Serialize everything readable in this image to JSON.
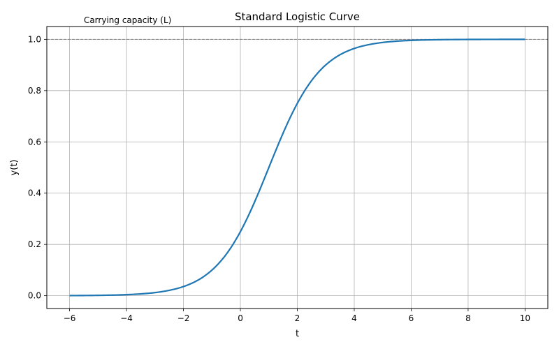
{
  "chart_data": {
    "type": "line",
    "title": "Standard Logistic Curve",
    "xlabel": "t",
    "ylabel": "y(t)",
    "xlim": [
      -6.8,
      10.8
    ],
    "ylim": [
      -0.05,
      1.05
    ],
    "x_ticks": [
      -6,
      -4,
      -2,
      0,
      2,
      4,
      6,
      8,
      10
    ],
    "x_tick_labels": [
      "−6",
      "−4",
      "−2",
      "0",
      "2",
      "4",
      "6",
      "8",
      "10"
    ],
    "y_ticks": [
      0.0,
      0.2,
      0.4,
      0.6,
      0.8,
      1.0
    ],
    "y_tick_labels": [
      "0.0",
      "0.2",
      "0.4",
      "0.6",
      "0.8",
      "1.0"
    ],
    "grid": true,
    "series": [
      {
        "color": "#1f77b4",
        "function": "logistic",
        "L": 1.0,
        "k": 1.1,
        "t0": 1.0,
        "x_range": [
          -6,
          10
        ]
      }
    ],
    "reference_line": {
      "y": 1.0,
      "style": "dashed",
      "color": "#808080"
    },
    "annotation": {
      "text": "Carrying capacity (L)",
      "x": -5.5,
      "y": 1.05
    }
  }
}
